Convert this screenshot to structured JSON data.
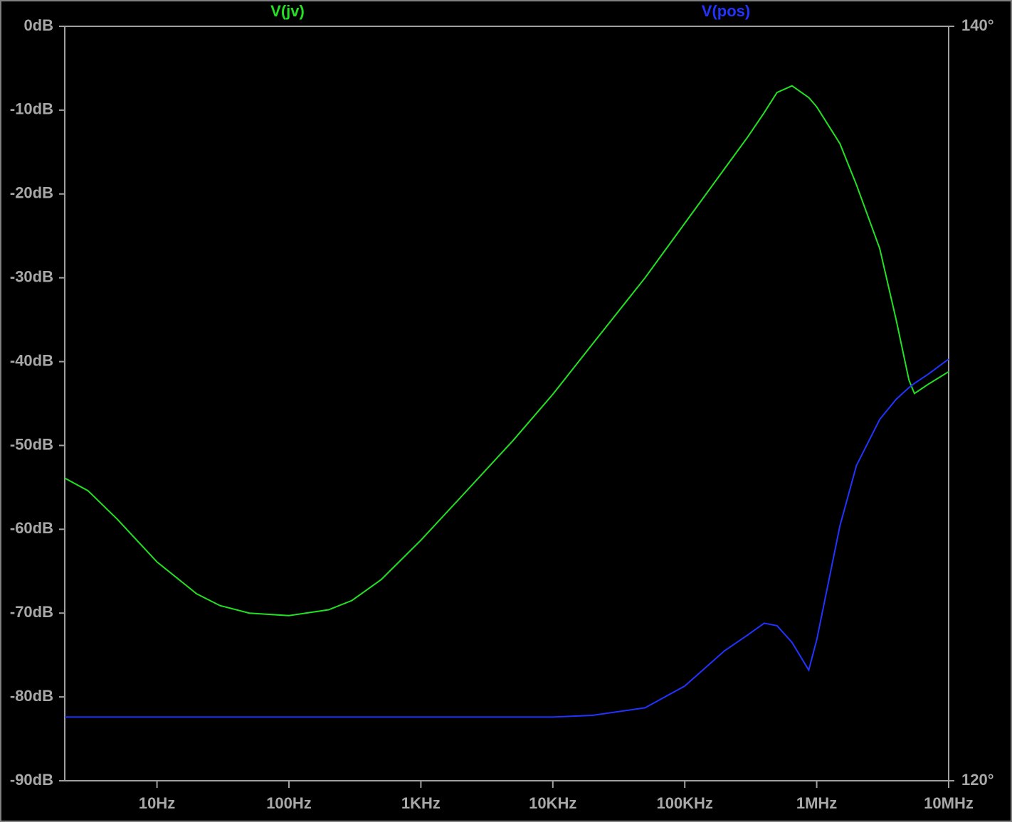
{
  "chart_data": {
    "type": "line",
    "x": [
      2,
      3,
      5,
      10,
      20,
      30,
      50,
      100,
      200,
      300,
      500,
      1000,
      2000,
      5000,
      10000,
      20000,
      50000,
      100000,
      200000,
      300000,
      400000,
      500000,
      650000,
      870000,
      1000000,
      1500000,
      2000000,
      3000000,
      4000000,
      5000000,
      5500000,
      7000000,
      10000000
    ],
    "series": [
      {
        "name": "V(jv)",
        "color": "#22e022",
        "values": [
          -53.9,
          -55.4,
          -58.8,
          -63.9,
          -67.7,
          -69.1,
          -70.0,
          -70.3,
          -69.6,
          -68.5,
          -66.0,
          -61.3,
          -56.2,
          -49.4,
          -43.9,
          -37.9,
          -30.0,
          -23.5,
          -17.0,
          -13.2,
          -10.3,
          -7.9,
          -7.1,
          -8.5,
          -9.6,
          -14.0,
          -18.9,
          -26.5,
          -35.0,
          -42.2,
          -43.8,
          -42.7,
          -41.2
        ]
      },
      {
        "name": "V(pos)",
        "color": "#2233ff",
        "values": [
          -82.4,
          -82.4,
          -82.4,
          -82.4,
          -82.4,
          -82.4,
          -82.4,
          -82.4,
          -82.4,
          -82.4,
          -82.4,
          -82.4,
          -82.4,
          -82.4,
          -82.4,
          -82.2,
          -81.3,
          -78.7,
          -74.5,
          -72.6,
          -71.2,
          -71.5,
          -73.5,
          -76.8,
          -73.2,
          -59.6,
          -52.4,
          -46.9,
          -44.5,
          -43.1,
          -42.6,
          -41.5,
          -39.7
        ]
      }
    ],
    "xlim": [
      2,
      10000000
    ],
    "log_x": true,
    "xticks": [
      {
        "value": 10,
        "label": "10Hz"
      },
      {
        "value": 100,
        "label": "100Hz"
      },
      {
        "value": 1000,
        "label": "1KHz"
      },
      {
        "value": 10000,
        "label": "10KHz"
      },
      {
        "value": 100000,
        "label": "100KHz"
      },
      {
        "value": 1000000,
        "label": "1MHz"
      },
      {
        "value": 10000000,
        "label": "10MHz"
      }
    ],
    "ylim": [
      -90,
      0
    ],
    "yticks": [
      {
        "value": 0,
        "label": "0dB"
      },
      {
        "value": -10,
        "label": "-10dB"
      },
      {
        "value": -20,
        "label": "-20dB"
      },
      {
        "value": -30,
        "label": "-30dB"
      },
      {
        "value": -40,
        "label": "-40dB"
      },
      {
        "value": -50,
        "label": "-50dB"
      },
      {
        "value": -60,
        "label": "-60dB"
      },
      {
        "value": -70,
        "label": "-70dB"
      },
      {
        "value": -80,
        "label": "-80dB"
      },
      {
        "value": -90,
        "label": "-90dB"
      }
    ],
    "y2lim": [
      120,
      140
    ],
    "y2ticks": [
      {
        "value": 140,
        "label": "140°"
      },
      {
        "value": 120,
        "label": "120°"
      }
    ]
  }
}
